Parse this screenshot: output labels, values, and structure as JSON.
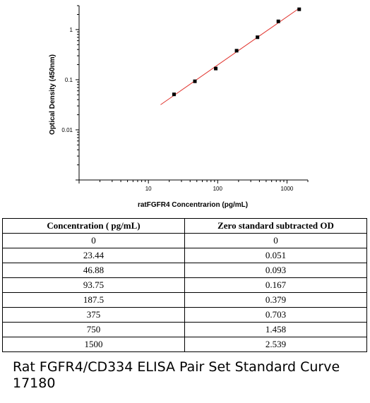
{
  "chart_data": {
    "type": "scatter",
    "x_scale": "log",
    "y_scale": "log",
    "xlabel": "ratFGFR4 Concentrarion (pg/mL)",
    "ylabel": "Optical Density (450nm)",
    "xlim": [
      1,
      2000
    ],
    "ylim": [
      0.001,
      3
    ],
    "x_ticks": [
      10,
      100,
      1000
    ],
    "x_tick_labels": [
      "10",
      "100",
      "1000"
    ],
    "y_ticks": [
      0.01,
      0.1,
      1
    ],
    "y_tick_labels": [
      "0.01",
      "0.1",
      "1"
    ],
    "grid": false,
    "series": [
      {
        "x": [
          23.44,
          46.88,
          93.75,
          187.5,
          375,
          750,
          1500
        ],
        "y": [
          0.051,
          0.093,
          0.167,
          0.379,
          0.703,
          1.458,
          2.539
        ],
        "marker_color": "#000000"
      }
    ],
    "fit_line": {
      "x_range": [
        15,
        1500
      ],
      "color": "#e0302a"
    }
  },
  "table": {
    "headers": [
      "Concentration ( pg/mL)",
      "Zero standard subtracted OD"
    ],
    "rows": [
      [
        "0",
        "0"
      ],
      [
        "23.44",
        "0.051"
      ],
      [
        "46.88",
        "0.093"
      ],
      [
        "93.75",
        "0.167"
      ],
      [
        "187.5",
        "0.379"
      ],
      [
        "375",
        "0.703"
      ],
      [
        "750",
        "1.458"
      ],
      [
        "1500",
        "2.539"
      ]
    ]
  },
  "caption": "Rat FGFR4/CD334 ELISA Pair Set Standard Curve 17180"
}
